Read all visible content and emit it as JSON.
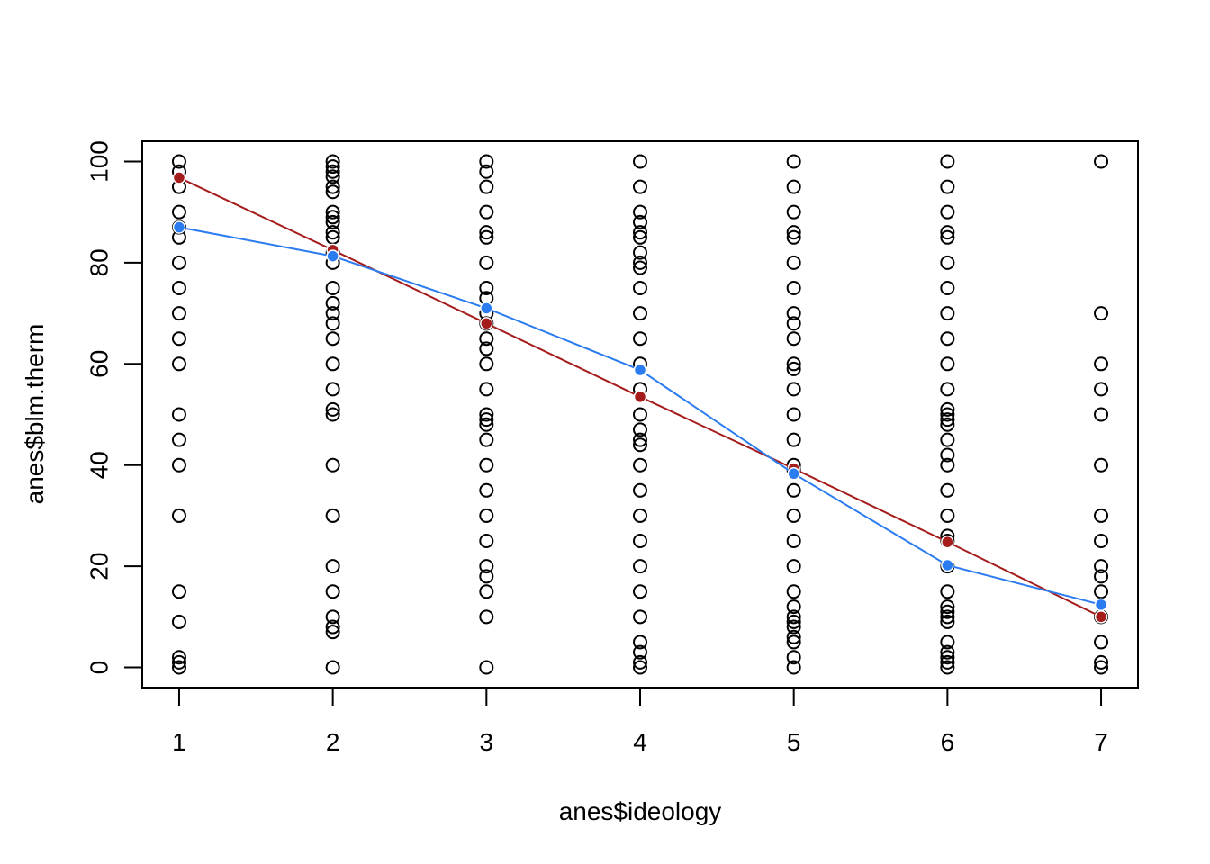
{
  "chart_data": {
    "type": "scatter",
    "xlabel": "anes$ideology",
    "ylabel": "anes$blm.therm",
    "xlim": [
      0.76,
      7.24
    ],
    "ylim": [
      -4,
      104
    ],
    "x_ticks": [
      1,
      2,
      3,
      4,
      5,
      6,
      7
    ],
    "x_tick_labels": [
      "1",
      "2",
      "3",
      "4",
      "5",
      "6",
      "7"
    ],
    "y_ticks": [
      0,
      20,
      40,
      60,
      80,
      100
    ],
    "y_tick_labels": [
      "0",
      "20",
      "40",
      "60",
      "80",
      "100"
    ],
    "grid": false,
    "point_style": "open circle",
    "points": [
      {
        "x": 1,
        "y": [
          100,
          98,
          95,
          90,
          87,
          85,
          80,
          75,
          70,
          65,
          60,
          50,
          45,
          40,
          30,
          15,
          9,
          2,
          1,
          0
        ]
      },
      {
        "x": 2,
        "y": [
          100,
          99,
          98,
          97,
          95,
          94,
          90,
          89,
          88,
          86,
          85,
          82,
          80,
          75,
          72,
          70,
          68,
          65,
          60,
          55,
          51,
          50,
          40,
          30,
          20,
          15,
          10,
          8,
          7,
          0
        ]
      },
      {
        "x": 3,
        "y": [
          100,
          98,
          95,
          90,
          86,
          85,
          80,
          75,
          73,
          70,
          68,
          65,
          63,
          60,
          55,
          50,
          49,
          48,
          45,
          40,
          35,
          30,
          25,
          20,
          18,
          15,
          10,
          0
        ]
      },
      {
        "x": 4,
        "y": [
          100,
          95,
          90,
          88,
          86,
          85,
          82,
          80,
          79,
          75,
          70,
          65,
          60,
          55,
          50,
          47,
          45,
          44,
          40,
          35,
          30,
          25,
          20,
          15,
          10,
          5,
          3,
          1,
          0
        ]
      },
      {
        "x": 5,
        "y": [
          100,
          95,
          90,
          86,
          85,
          80,
          75,
          70,
          68,
          65,
          60,
          59,
          55,
          50,
          45,
          40,
          39,
          35,
          30,
          25,
          20,
          15,
          12,
          10,
          9,
          8,
          6,
          5,
          2,
          0
        ]
      },
      {
        "x": 6,
        "y": [
          100,
          95,
          90,
          86,
          85,
          80,
          75,
          70,
          65,
          60,
          55,
          51,
          50,
          49,
          48,
          45,
          42,
          40,
          35,
          30,
          26,
          25,
          20,
          15,
          12,
          11,
          10,
          9,
          5,
          3,
          2,
          1,
          0
        ]
      },
      {
        "x": 7,
        "y": [
          100,
          70,
          60,
          55,
          50,
          40,
          30,
          25,
          20,
          18,
          15,
          10,
          5,
          1,
          0
        ]
      }
    ],
    "series": [
      {
        "color": "#A51C1C",
        "x": [
          1,
          2,
          3,
          4,
          5,
          6,
          7
        ],
        "values": [
          96.8,
          82.5,
          68.0,
          53.5,
          39.3,
          24.8,
          10.0
        ]
      },
      {
        "color": "#2B7CF0",
        "x": [
          1,
          2,
          3,
          4,
          5,
          6,
          7
        ],
        "values": [
          87.0,
          81.3,
          71.0,
          58.8,
          38.3,
          20.2,
          12.4
        ]
      }
    ]
  }
}
